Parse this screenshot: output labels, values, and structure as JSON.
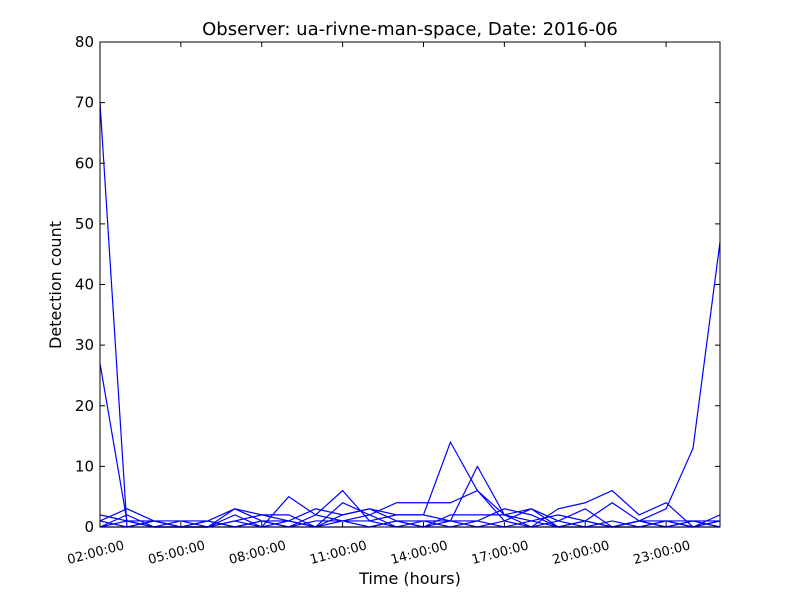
{
  "chart_data": {
    "type": "line",
    "title": "Observer: ua-rivne-man-space, Date: 2016-06",
    "xlabel": "Time (hours)",
    "ylabel": "Detection count",
    "x_ticks": [
      "02:00:00",
      "05:00:00",
      "08:00:00",
      "11:00:00",
      "14:00:00",
      "17:00:00",
      "20:00:00",
      "23:00:00"
    ],
    "y_ticks": [
      0,
      10,
      20,
      30,
      40,
      50,
      60,
      70,
      80
    ],
    "ylim": [
      0,
      80
    ],
    "line_color": "#0000ff",
    "x": [
      "02:00",
      "03:00",
      "04:00",
      "05:00",
      "06:00",
      "07:00",
      "08:00",
      "09:00",
      "10:00",
      "11:00",
      "12:00",
      "13:00",
      "14:00",
      "15:00",
      "16:00",
      "17:00",
      "18:00",
      "19:00",
      "20:00",
      "21:00",
      "22:00",
      "23:00",
      "00:00",
      "01:00"
    ],
    "series": [
      {
        "values": [
          70,
          0,
          1,
          1,
          0,
          3,
          2,
          2,
          0,
          2,
          3,
          1,
          1,
          1,
          1,
          3,
          2,
          0,
          1,
          0,
          1,
          3,
          13,
          47
        ]
      },
      {
        "values": [
          27,
          1,
          0,
          0,
          0,
          2,
          0,
          5,
          2,
          6,
          1,
          2,
          2,
          14,
          6,
          2,
          3,
          0,
          1,
          0,
          0,
          1,
          1,
          0
        ]
      },
      {
        "values": [
          2,
          1,
          1,
          0,
          1,
          3,
          1,
          1,
          3,
          2,
          3,
          2,
          2,
          1,
          10,
          2,
          0,
          3,
          4,
          6,
          2,
          4,
          0,
          2
        ]
      },
      {
        "values": [
          1,
          3,
          1,
          0,
          0,
          1,
          2,
          1,
          0,
          4,
          2,
          4,
          4,
          4,
          6,
          1,
          3,
          1,
          3,
          0,
          1,
          1,
          0,
          1
        ]
      },
      {
        "values": [
          0,
          2,
          0,
          1,
          1,
          0,
          1,
          0,
          2,
          1,
          0,
          1,
          0,
          2,
          2,
          2,
          1,
          2,
          1,
          4,
          1,
          0,
          1,
          1
        ]
      },
      {
        "values": [
          0,
          0,
          0,
          0,
          0,
          1,
          0,
          0,
          1,
          1,
          1,
          0,
          0,
          0,
          1,
          0,
          0,
          0,
          0,
          1,
          0,
          0,
          0,
          0
        ]
      },
      {
        "values": [
          1,
          0,
          1,
          0,
          0,
          0,
          0,
          1,
          0,
          0,
          0,
          1,
          0,
          1,
          0,
          1,
          0,
          1,
          0,
          0,
          1,
          0,
          1,
          0
        ]
      },
      {
        "values": [
          0,
          1,
          0,
          0,
          1,
          0,
          1,
          0,
          0,
          1,
          2,
          0,
          1,
          0,
          0,
          0,
          1,
          0,
          0,
          0,
          0,
          1,
          0,
          1
        ]
      }
    ]
  }
}
